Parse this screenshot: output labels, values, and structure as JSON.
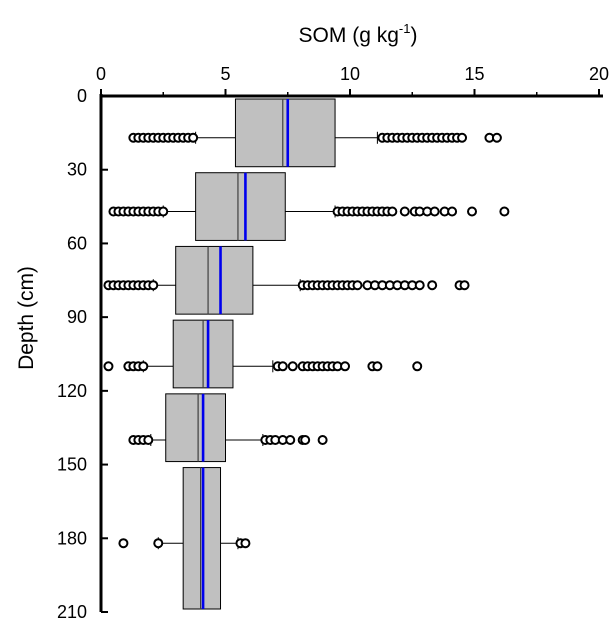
{
  "chart_data": {
    "type": "boxplot",
    "title": "",
    "xlabel": {
      "text": "SOM (g kg",
      "sup": "-1",
      "tail": ")"
    },
    "ylabel": "Depth (cm)",
    "xlim": [
      0,
      20
    ],
    "ylim": [
      0,
      210
    ],
    "x_ticks": [
      "0",
      "5",
      "10",
      "15",
      "20"
    ],
    "y_ticks": [
      "0",
      "30",
      "60",
      "90",
      "120",
      "150",
      "180",
      "210"
    ],
    "x_axis_position": "top",
    "y_axis_direction": "downward",
    "grid": false,
    "colors": {
      "box_fill": "#c0c0c0",
      "median_line": "#404040",
      "mean_line": "#0000ee",
      "outlier": "#000000"
    },
    "boxes": [
      {
        "depth_top": 0,
        "depth_bottom": 30,
        "outlier_depth": 17,
        "whisker_low": 3.8,
        "q1": 5.4,
        "median": 7.3,
        "mean": 7.5,
        "q3": 9.4,
        "whisker_high": 11.1,
        "outliers_low": [
          1.3,
          1.5,
          1.7,
          1.9,
          2.1,
          2.3,
          2.5,
          2.7,
          2.9,
          3.1,
          3.3,
          3.5,
          3.7
        ],
        "outliers_high": [
          11.3,
          11.5,
          11.7,
          11.9,
          12.1,
          12.3,
          12.5,
          12.7,
          12.9,
          13.1,
          13.3,
          13.5,
          13.7,
          13.9,
          14.1,
          14.3,
          14.5,
          15.6,
          15.9
        ]
      },
      {
        "depth_top": 30,
        "depth_bottom": 60,
        "outlier_depth": 47,
        "whisker_low": 2.5,
        "q1": 3.8,
        "median": 5.5,
        "mean": 5.8,
        "q3": 7.4,
        "whisker_high": 9.4,
        "outliers_low": [
          0.5,
          0.7,
          0.9,
          1.1,
          1.3,
          1.5,
          1.7,
          1.9,
          2.1,
          2.3,
          2.5
        ],
        "outliers_high": [
          9.5,
          9.7,
          9.9,
          10.1,
          10.3,
          10.5,
          10.7,
          10.9,
          11.1,
          11.3,
          11.5,
          11.7,
          12.2,
          12.6,
          12.8,
          13.1,
          13.4,
          13.8,
          14.1,
          14.9,
          16.2
        ]
      },
      {
        "depth_top": 60,
        "depth_bottom": 90,
        "outlier_depth": 77,
        "whisker_low": 2.1,
        "q1": 3.0,
        "median": 4.3,
        "mean": 4.8,
        "q3": 6.1,
        "whisker_high": 8.0,
        "outliers_low": [
          0.3,
          0.5,
          0.7,
          0.9,
          1.1,
          1.3,
          1.5,
          1.7,
          1.9,
          2.1
        ],
        "outliers_high": [
          8.1,
          8.3,
          8.5,
          8.7,
          8.9,
          9.1,
          9.3,
          9.5,
          9.7,
          9.9,
          10.1,
          10.3,
          10.7,
          11.0,
          11.3,
          11.6,
          11.9,
          12.2,
          12.5,
          12.8,
          13.3,
          14.4,
          14.6
        ]
      },
      {
        "depth_top": 90,
        "depth_bottom": 120,
        "outlier_depth": 110,
        "whisker_low": 1.7,
        "q1": 2.9,
        "median": 4.1,
        "mean": 4.3,
        "q3": 5.3,
        "whisker_high": 6.9,
        "outliers_low": [
          0.3,
          1.1,
          1.3,
          1.5,
          1.7
        ],
        "outliers_high": [
          7.1,
          7.3,
          7.7,
          8.1,
          8.3,
          8.5,
          8.7,
          8.9,
          9.1,
          9.3,
          9.5,
          9.8,
          10.9,
          11.1,
          12.7
        ]
      },
      {
        "depth_top": 120,
        "depth_bottom": 150,
        "outlier_depth": 140,
        "whisker_low": 2.0,
        "q1": 2.6,
        "median": 3.9,
        "mean": 4.1,
        "q3": 5.0,
        "whisker_high": 6.5,
        "outliers_low": [
          1.3,
          1.5,
          1.7,
          1.9
        ],
        "outliers_high": [
          6.6,
          6.8,
          7.0,
          7.3,
          7.6,
          8.1,
          8.2,
          8.9
        ]
      },
      {
        "depth_top": 150,
        "depth_bottom": 210,
        "outlier_depth": 182,
        "whisker_low": 2.3,
        "q1": 3.3,
        "median": 4.0,
        "mean": 4.1,
        "q3": 4.8,
        "whisker_high": 5.5,
        "outliers_low": [
          0.9,
          2.3
        ],
        "outliers_high": [
          5.6,
          5.8
        ]
      }
    ]
  }
}
